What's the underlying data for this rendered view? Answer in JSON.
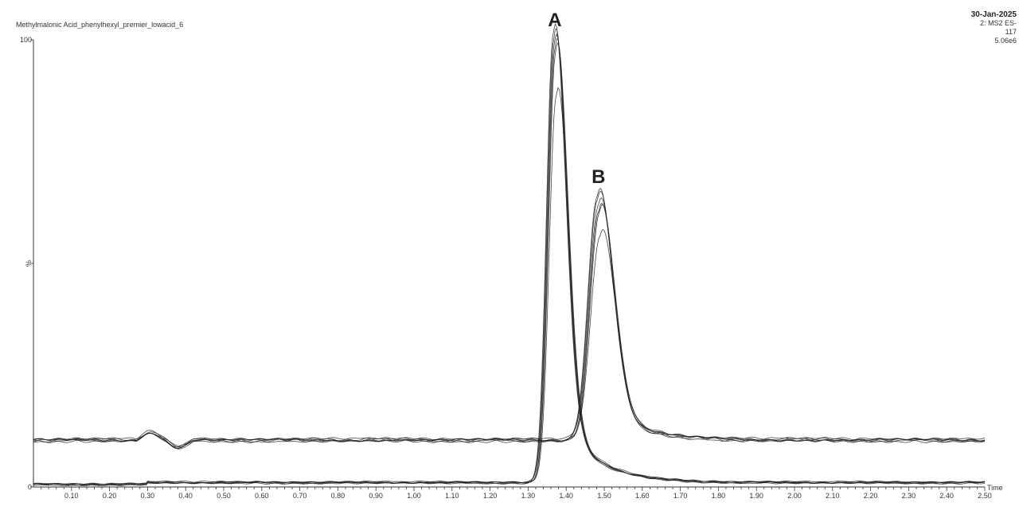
{
  "header": {
    "title": "Methylmalonic Acid_phenylhexyl_premier_lowacid_6",
    "date": "30-Jan-2025",
    "channel": "2: MS2 ES-",
    "mass": "117",
    "intensity": "5.06e6"
  },
  "chart_data": {
    "type": "line",
    "xlabel": "Time",
    "ylabel": "%",
    "xlim": [
      0.0,
      2.5
    ],
    "ylim": [
      0,
      100
    ],
    "grid": false,
    "x_ticks": [
      0.1,
      0.2,
      0.3,
      0.4,
      0.5,
      0.6,
      0.7,
      0.8,
      0.9,
      1.0,
      1.1,
      1.2,
      1.3,
      1.4,
      1.5,
      1.6,
      1.7,
      1.8,
      1.9,
      2.0,
      2.1,
      2.2,
      2.3,
      2.4,
      2.5
    ],
    "x_tick_labels": [
      "0.10",
      "0.20",
      "0.30",
      "0.40",
      "0.50",
      "0.60",
      "0.70",
      "0.80",
      "0.90",
      "1.00",
      "1.10",
      "1.20",
      "1.30",
      "1.40",
      "1.50",
      "1.60",
      "1.70",
      "1.80",
      "1.90",
      "2.00",
      "2.10",
      "2.20",
      "2.30",
      "2.40",
      "2.50"
    ],
    "y_ticks": [
      0,
      50,
      100
    ],
    "y_tick_labels": [
      "0",
      "%",
      "100"
    ],
    "annotations": [
      {
        "text": "A",
        "x": 1.37,
        "y": 103
      },
      {
        "text": "B",
        "x": 1.485,
        "y": 68
      }
    ],
    "peak_groups": [
      {
        "name": "A",
        "retention_time": 1.37,
        "heights": [
          100,
          99,
          98,
          97,
          96,
          86
        ],
        "baseline": 1.0
      },
      {
        "name": "B",
        "retention_time": 1.485,
        "heights": [
          65,
          64,
          63,
          62,
          61,
          56
        ],
        "baseline": 10.5
      }
    ],
    "line_color": "#222222"
  }
}
